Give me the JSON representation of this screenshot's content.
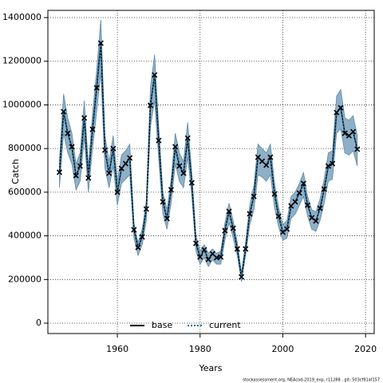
{
  "chart_data": {
    "type": "line",
    "x_label": "Years",
    "y_label": "Catch",
    "footer": "stockassessment.org, NEAcod-2019_exp, r11288 , git: 503cf91af157",
    "x": [
      1946,
      1947,
      1948,
      1949,
      1950,
      1951,
      1952,
      1953,
      1954,
      1955,
      1956,
      1957,
      1958,
      1959,
      1960,
      1961,
      1962,
      1963,
      1964,
      1965,
      1966,
      1967,
      1968,
      1969,
      1970,
      1971,
      1972,
      1973,
      1974,
      1975,
      1976,
      1977,
      1978,
      1979,
      1980,
      1981,
      1982,
      1983,
      1984,
      1985,
      1986,
      1987,
      1988,
      1989,
      1990,
      1991,
      1992,
      1993,
      1994,
      1995,
      1996,
      1997,
      1998,
      1999,
      2000,
      2001,
      2002,
      2003,
      2004,
      2005,
      2006,
      2007,
      2008,
      2009,
      2010,
      2011,
      2012,
      2013,
      2014,
      2015,
      2016,
      2017,
      2018
    ],
    "series": [
      {
        "name": "base",
        "color": "#000000",
        "dash": "solid",
        "values": [
          691000,
          969000,
          870000,
          808000,
          676000,
          720000,
          940000,
          665000,
          888000,
          1078000,
          1283000,
          793000,
          687000,
          800000,
          600000,
          709000,
          731000,
          757000,
          428000,
          347000,
          395000,
          523000,
          998000,
          1137000,
          837000,
          556000,
          479000,
          611000,
          808000,
          720000,
          687000,
          848000,
          643000,
          366000,
          303000,
          336000,
          292000,
          318000,
          300000,
          303000,
          424000,
          512000,
          435000,
          340000,
          212000,
          340000,
          501000,
          581000,
          760000,
          742000,
          724000,
          760000,
          592000,
          490000,
          417000,
          431000,
          537000,
          556000,
          596000,
          640000,
          541000,
          483000,
          468000,
          526000,
          614000,
          720000,
          731000,
          965000,
          987000,
          870000,
          859000,
          877000,
          797000
        ]
      },
      {
        "name": "current",
        "color": "#2b6f98",
        "dash": "dotted",
        "values": [
          691000,
          969000,
          870000,
          808000,
          676000,
          720000,
          940000,
          665000,
          888000,
          1078000,
          1283000,
          793000,
          687000,
          800000,
          600000,
          709000,
          731000,
          757000,
          428000,
          347000,
          395000,
          523000,
          998000,
          1137000,
          837000,
          556000,
          479000,
          611000,
          808000,
          720000,
          687000,
          848000,
          643000,
          366000,
          303000,
          336000,
          292000,
          318000,
          300000,
          303000,
          424000,
          512000,
          435000,
          340000,
          212000,
          340000,
          501000,
          581000,
          760000,
          742000,
          724000,
          760000,
          592000,
          490000,
          417000,
          431000,
          537000,
          556000,
          596000,
          640000,
          541000,
          483000,
          468000,
          526000,
          614000,
          720000,
          731000,
          965000,
          987000,
          870000,
          859000,
          877000,
          797000
        ]
      }
    ],
    "observed": {
      "color": "#000000",
      "values": [
        691000,
        969000,
        870000,
        808000,
        676000,
        720000,
        940000,
        665000,
        888000,
        1078000,
        1283000,
        793000,
        687000,
        800000,
        600000,
        709000,
        731000,
        757000,
        428000,
        347000,
        395000,
        523000,
        998000,
        1137000,
        837000,
        556000,
        479000,
        611000,
        808000,
        720000,
        687000,
        848000,
        643000,
        366000,
        303000,
        336000,
        292000,
        318000,
        300000,
        303000,
        424000,
        512000,
        435000,
        340000,
        212000,
        340000,
        501000,
        581000,
        760000,
        742000,
        724000,
        760000,
        592000,
        490000,
        417000,
        431000,
        537000,
        556000,
        596000,
        640000,
        541000,
        483000,
        468000,
        526000,
        614000,
        720000,
        731000,
        965000,
        987000,
        870000,
        859000,
        877000,
        797000
      ]
    },
    "band": {
      "color": "#8eb0c7",
      "lower": [
        620000,
        870000,
        780000,
        730000,
        610000,
        650000,
        850000,
        600000,
        800000,
        970000,
        1150000,
        710000,
        620000,
        720000,
        540000,
        640000,
        660000,
        680000,
        390000,
        310000,
        360000,
        470000,
        900000,
        1020000,
        750000,
        500000,
        430000,
        550000,
        730000,
        650000,
        620000,
        760000,
        580000,
        330000,
        270000,
        300000,
        260000,
        290000,
        270000,
        270000,
        380000,
        460000,
        390000,
        310000,
        190000,
        310000,
        450000,
        520000,
        680000,
        670000,
        650000,
        680000,
        530000,
        440000,
        380000,
        390000,
        480000,
        500000,
        540000,
        580000,
        490000,
        430000,
        420000,
        470000,
        550000,
        650000,
        660000,
        870000,
        890000,
        780000,
        770000,
        790000,
        720000
      ],
      "upper": [
        750000,
        1050000,
        940000,
        870000,
        730000,
        780000,
        1020000,
        720000,
        960000,
        1160000,
        1390000,
        860000,
        740000,
        860000,
        650000,
        770000,
        790000,
        820000,
        460000,
        370000,
        430000,
        560000,
        1080000,
        1230000,
        900000,
        600000,
        520000,
        660000,
        870000,
        780000,
        740000,
        920000,
        690000,
        400000,
        330000,
        360000,
        320000,
        340000,
        320000,
        330000,
        460000,
        550000,
        470000,
        370000,
        230000,
        370000,
        540000,
        630000,
        820000,
        800000,
        780000,
        820000,
        640000,
        530000,
        450000,
        470000,
        580000,
        600000,
        640000,
        690000,
        580000,
        520000,
        510000,
        570000,
        660000,
        780000,
        790000,
        1040000,
        1070000,
        940000,
        930000,
        950000,
        860000
      ]
    },
    "xlim": [
      1943.2,
      2022.1
    ],
    "ylim": [
      -47500,
      1433000
    ],
    "xticks": [
      1960,
      1980,
      2000,
      2020
    ],
    "yticks": [
      0,
      200000,
      400000,
      600000,
      800000,
      1000000,
      1200000,
      1400000
    ],
    "grid": true,
    "legend": "bottom"
  }
}
